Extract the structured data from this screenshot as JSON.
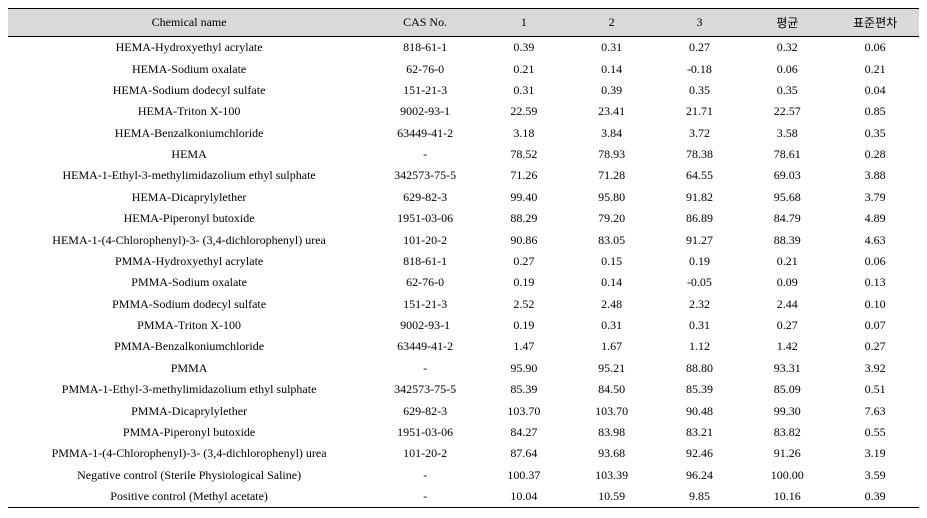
{
  "table": {
    "columns": [
      {
        "key": "name",
        "label": "Chemical name"
      },
      {
        "key": "cas",
        "label": "CAS No."
      },
      {
        "key": "v1",
        "label": "1"
      },
      {
        "key": "v2",
        "label": "2"
      },
      {
        "key": "v3",
        "label": "3"
      },
      {
        "key": "avg",
        "label": "평균"
      },
      {
        "key": "std",
        "label": "표준편차"
      }
    ],
    "header_bg": "#d9d9d9",
    "border_color": "#000000",
    "font_family": "Times New Roman",
    "font_size_pt": 9,
    "rows": [
      {
        "name": "HEMA-Hydroxyethyl acrylate",
        "cas": "818-61-1",
        "v1": "0.39",
        "v2": "0.31",
        "v3": "0.27",
        "avg": "0.32",
        "std": "0.06"
      },
      {
        "name": "HEMA-Sodium oxalate",
        "cas": "62-76-0",
        "v1": "0.21",
        "v2": "0.14",
        "v3": "-0.18",
        "avg": "0.06",
        "std": "0.21"
      },
      {
        "name": "HEMA-Sodium dodecyl sulfate",
        "cas": "151-21-3",
        "v1": "0.31",
        "v2": "0.39",
        "v3": "0.35",
        "avg": "0.35",
        "std": "0.04"
      },
      {
        "name": "HEMA-Triton X-100",
        "cas": "9002-93-1",
        "v1": "22.59",
        "v2": "23.41",
        "v3": "21.71",
        "avg": "22.57",
        "std": "0.85"
      },
      {
        "name": "HEMA-Benzalkoniumchloride",
        "cas": "63449-41-2",
        "v1": "3.18",
        "v2": "3.84",
        "v3": "3.72",
        "avg": "3.58",
        "std": "0.35"
      },
      {
        "name": "HEMA",
        "cas": "-",
        "v1": "78.52",
        "v2": "78.93",
        "v3": "78.38",
        "avg": "78.61",
        "std": "0.28"
      },
      {
        "name": "HEMA-1-Ethyl-3-methylimidazolium ethyl sulphate",
        "cas": "342573-75-5",
        "v1": "71.26",
        "v2": "71.28",
        "v3": "64.55",
        "avg": "69.03",
        "std": "3.88"
      },
      {
        "name": "HEMA-Dicaprylylether",
        "cas": "629-82-3",
        "v1": "99.40",
        "v2": "95.80",
        "v3": "91.82",
        "avg": "95.68",
        "std": "3.79"
      },
      {
        "name": "HEMA-Piperonyl butoxide",
        "cas": "1951-03-06",
        "v1": "88.29",
        "v2": "79.20",
        "v3": "86.89",
        "avg": "84.79",
        "std": "4.89"
      },
      {
        "name": "HEMA-1-(4-Chlorophenyl)-3- (3,4-dichlorophenyl) urea",
        "cas": "101-20-2",
        "v1": "90.86",
        "v2": "83.05",
        "v3": "91.27",
        "avg": "88.39",
        "std": "4.63"
      },
      {
        "name": "PMMA-Hydroxyethyl acrylate",
        "cas": "818-61-1",
        "v1": "0.27",
        "v2": "0.15",
        "v3": "0.19",
        "avg": "0.21",
        "std": "0.06"
      },
      {
        "name": "PMMA-Sodium oxalate",
        "cas": "62-76-0",
        "v1": "0.19",
        "v2": "0.14",
        "v3": "-0.05",
        "avg": "0.09",
        "std": "0.13"
      },
      {
        "name": "PMMA-Sodium dodecyl sulfate",
        "cas": "151-21-3",
        "v1": "2.52",
        "v2": "2.48",
        "v3": "2.32",
        "avg": "2.44",
        "std": "0.10"
      },
      {
        "name": "PMMA-Triton X-100",
        "cas": "9002-93-1",
        "v1": "0.19",
        "v2": "0.31",
        "v3": "0.31",
        "avg": "0.27",
        "std": "0.07"
      },
      {
        "name": "PMMA-Benzalkoniumchloride",
        "cas": "63449-41-2",
        "v1": "1.47",
        "v2": "1.67",
        "v3": "1.12",
        "avg": "1.42",
        "std": "0.27"
      },
      {
        "name": "PMMA",
        "cas": "-",
        "v1": "95.90",
        "v2": "95.21",
        "v3": "88.80",
        "avg": "93.31",
        "std": "3.92"
      },
      {
        "name": "PMMA-1-Ethyl-3-methylimidazolium ethyl sulphate",
        "cas": "342573-75-5",
        "v1": "85.39",
        "v2": "84.50",
        "v3": "85.39",
        "avg": "85.09",
        "std": "0.51"
      },
      {
        "name": "PMMA-Dicaprylylether",
        "cas": "629-82-3",
        "v1": "103.70",
        "v2": "103.70",
        "v3": "90.48",
        "avg": "99.30",
        "std": "7.63"
      },
      {
        "name": "PMMA-Piperonyl butoxide",
        "cas": "1951-03-06",
        "v1": "84.27",
        "v2": "83.98",
        "v3": "83.21",
        "avg": "83.82",
        "std": "0.55"
      },
      {
        "name": "PMMA-1-(4-Chlorophenyl)-3- (3,4-dichlorophenyl) urea",
        "cas": "101-20-2",
        "v1": "87.64",
        "v2": "93.68",
        "v3": "92.46",
        "avg": "91.26",
        "std": "3.19"
      },
      {
        "name": "Negative control (Sterile Physiological Saline)",
        "cas": "-",
        "v1": "100.37",
        "v2": "103.39",
        "v3": "96.24",
        "avg": "100.00",
        "std": "3.59"
      },
      {
        "name": "Positive control (Methyl acetate)",
        "cas": "-",
        "v1": "10.04",
        "v2": "10.59",
        "v3": "9.85",
        "avg": "10.16",
        "std": "0.39"
      }
    ]
  }
}
